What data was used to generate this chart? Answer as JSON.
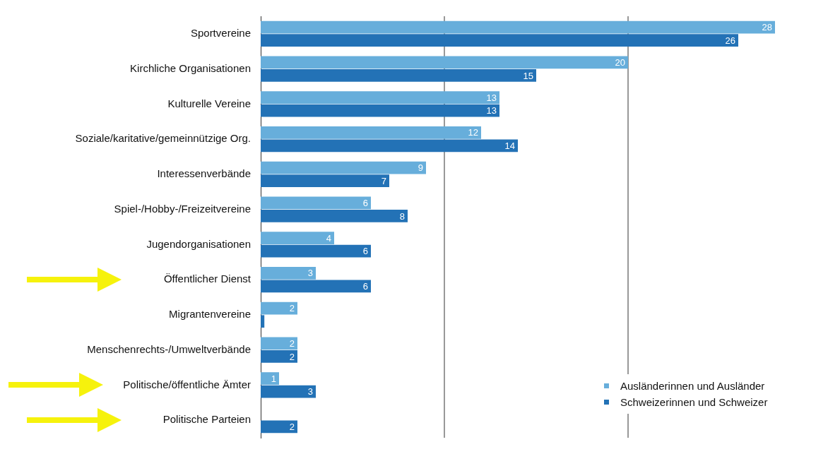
{
  "chart_data": {
    "type": "bar",
    "orientation": "horizontal",
    "categories": [
      "Sportvereine",
      "Kirchliche Organisationen",
      "Kulturelle Vereine",
      "Soziale/karitative/gemeinnützige Org.",
      "Interessenverbände",
      "Spiel-/Hobby-/Freizeitvereine",
      "Jugendorganisationen",
      "Öffentlicher Dienst",
      "Migrantenvereine",
      "Menschenrechts-/Umweltverbände",
      "Politische/öffentliche Ämter",
      "Politische Parteien"
    ],
    "series": [
      {
        "name": "Ausländerinnen und Ausländer",
        "color": "#67aedb",
        "values": [
          28,
          20,
          13,
          12,
          9,
          6,
          4,
          3,
          2,
          2,
          1,
          null
        ],
        "value_labels": [
          "28",
          "20",
          "13",
          "12",
          "9",
          "6",
          "4",
          "3",
          "2",
          "2",
          "1",
          null
        ]
      },
      {
        "name": "Schweizerinnen und Schweizer",
        "color": "#2372b6",
        "values": [
          26,
          15,
          13,
          14,
          7,
          8,
          6,
          6,
          0.2,
          2,
          3,
          2
        ],
        "value_labels": [
          "26",
          "15",
          "13",
          "14",
          "7",
          "8",
          "6",
          "6",
          null,
          "2",
          "3",
          "2"
        ]
      }
    ],
    "ref_lines": [
      {
        "axis": "x",
        "value": 10,
        "color": "#333333"
      },
      {
        "axis": "x",
        "value": 20,
        "color": "#333333"
      }
    ],
    "tick_labels": "y",
    "legend": "bottom right"
  }
}
